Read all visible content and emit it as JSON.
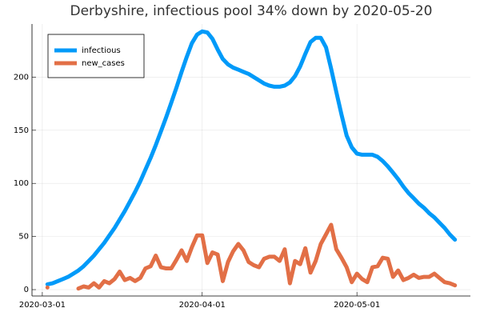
{
  "chart_data": {
    "type": "line",
    "title": "Derbyshire, infectious pool 34% down by 2020-05-20",
    "x": [
      "2020-03-02",
      "2020-03-03",
      "2020-03-04",
      "2020-03-05",
      "2020-03-06",
      "2020-03-07",
      "2020-03-08",
      "2020-03-09",
      "2020-03-10",
      "2020-03-11",
      "2020-03-12",
      "2020-03-13",
      "2020-03-14",
      "2020-03-15",
      "2020-03-16",
      "2020-03-17",
      "2020-03-18",
      "2020-03-19",
      "2020-03-20",
      "2020-03-21",
      "2020-03-22",
      "2020-03-23",
      "2020-03-24",
      "2020-03-25",
      "2020-03-26",
      "2020-03-27",
      "2020-03-28",
      "2020-03-29",
      "2020-03-30",
      "2020-03-31",
      "2020-04-01",
      "2020-04-02",
      "2020-04-03",
      "2020-04-04",
      "2020-04-05",
      "2020-04-06",
      "2020-04-07",
      "2020-04-08",
      "2020-04-09",
      "2020-04-10",
      "2020-04-11",
      "2020-04-12",
      "2020-04-13",
      "2020-04-14",
      "2020-04-15",
      "2020-04-16",
      "2020-04-17",
      "2020-04-18",
      "2020-04-19",
      "2020-04-20",
      "2020-04-21",
      "2020-04-22",
      "2020-04-23",
      "2020-04-24",
      "2020-04-25",
      "2020-04-26",
      "2020-04-27",
      "2020-04-28",
      "2020-04-29",
      "2020-04-30",
      "2020-05-01",
      "2020-05-02",
      "2020-05-03",
      "2020-05-04",
      "2020-05-05",
      "2020-05-06",
      "2020-05-07",
      "2020-05-08",
      "2020-05-09",
      "2020-05-10",
      "2020-05-11",
      "2020-05-12",
      "2020-05-13",
      "2020-05-14",
      "2020-05-15",
      "2020-05-16",
      "2020-05-17",
      "2020-05-18",
      "2020-05-19",
      "2020-05-20"
    ],
    "series": [
      {
        "name": "infectious",
        "color": "#009af9",
        "values": [
          5,
          6,
          8,
          10,
          12,
          15,
          18,
          22,
          27,
          32,
          38,
          44,
          51,
          58,
          66,
          74,
          83,
          92,
          102,
          113,
          124,
          136,
          149,
          162,
          176,
          190,
          205,
          219,
          232,
          240,
          243,
          242,
          236,
          226,
          217,
          212,
          209,
          207,
          205,
          203,
          200,
          197,
          194,
          192,
          191,
          191,
          192,
          195,
          201,
          210,
          222,
          233,
          237,
          237,
          228,
          208,
          186,
          165,
          145,
          134,
          128,
          127,
          127,
          127,
          125,
          121,
          116,
          110,
          104,
          97,
          91,
          86,
          81,
          77,
          72,
          68,
          63,
          58,
          52,
          47
        ]
      },
      {
        "name": "new_cases",
        "color": "#e26f46",
        "values": [
          2,
          null,
          null,
          null,
          null,
          null,
          1,
          3,
          2,
          6,
          2,
          8,
          6,
          10,
          17,
          9,
          11,
          8,
          11,
          20,
          22,
          32,
          21,
          20,
          20,
          28,
          37,
          27,
          40,
          51,
          51,
          25,
          35,
          33,
          8,
          26,
          36,
          43,
          37,
          26,
          23,
          21,
          29,
          31,
          31,
          27,
          38,
          6,
          27,
          24,
          39,
          16,
          27,
          43,
          52,
          61,
          38,
          30,
          21,
          7,
          15,
          10,
          7,
          21,
          22,
          30,
          29,
          12,
          18,
          9,
          11,
          14,
          11,
          12,
          12,
          15,
          11,
          7,
          6,
          4
        ]
      }
    ],
    "xlim": [
      "2020-02-28",
      "2020-05-23"
    ],
    "xticks": [
      "2020-03-01",
      "2020-04-01",
      "2020-05-01"
    ],
    "ylim": [
      -6,
      250
    ],
    "yticks": [
      0,
      50,
      100,
      150,
      200
    ],
    "grid": true,
    "legend": "top-left"
  }
}
